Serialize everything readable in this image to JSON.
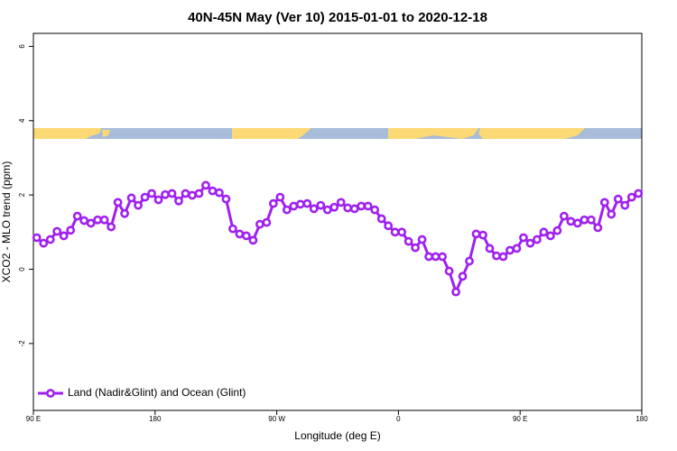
{
  "chart_data": {
    "type": "line",
    "title": "40N-45N May (Ver 10)   2015-01-01 to 2020-12-18",
    "x_label": "Longitude (deg E)",
    "y_label": "XCO2 - MLO trend (ppm)",
    "xlim": [
      90,
      540
    ],
    "xticks": [
      {
        "value": 90,
        "label": "90 E"
      },
      {
        "value": 180,
        "label": "180"
      },
      {
        "value": 270,
        "label": "90 W"
      },
      {
        "value": 360,
        "label": "0"
      },
      {
        "value": 450,
        "label": "90 E"
      },
      {
        "value": 540,
        "label": "180"
      }
    ],
    "ylim": [
      -3.8,
      6.35
    ],
    "yticks": [
      -2,
      0,
      2,
      4,
      6
    ],
    "legend": "bottomleft",
    "x": [
      92.5,
      97.5,
      102.5,
      107.5,
      112.5,
      117.5,
      122.5,
      127.5,
      132.5,
      137.5,
      142.5,
      147.5,
      152.5,
      157.5,
      162.5,
      167.5,
      172.5,
      177.5,
      182.5,
      187.5,
      192.5,
      197.5,
      202.5,
      207.5,
      212.5,
      217.5,
      222.5,
      227.5,
      232.5,
      237.5,
      242.5,
      247.5,
      252.5,
      257.5,
      262.5,
      267.5,
      272.5,
      277.5,
      282.5,
      287.5,
      292.5,
      297.5,
      302.5,
      307.5,
      312.5,
      317.5,
      322.5,
      327.5,
      332.5,
      337.5,
      342.5,
      347.5,
      352.5,
      357.5,
      362.5,
      367.5,
      372.5,
      377.5,
      382.5,
      387.5,
      392.5,
      397.5,
      402.5,
      407.5,
      412.5,
      417.5,
      422.5,
      427.5,
      432.5,
      437.5,
      442.5,
      447.5,
      452.5,
      457.5,
      462.5,
      467.5,
      472.5,
      477.5,
      482.5,
      487.5,
      492.5,
      497.5,
      502.5,
      507.5,
      512.5,
      517.5,
      522.5,
      527.5,
      532.5,
      537.5
    ],
    "series": [
      {
        "name": "Land (Nadir&Glint) and Ocean (Glint)",
        "color": "#a020f0",
        "values": [
          0.85,
          0.7,
          0.8,
          1.02,
          0.9,
          1.05,
          1.43,
          1.31,
          1.24,
          1.33,
          1.33,
          1.14,
          1.8,
          1.5,
          1.92,
          1.72,
          1.94,
          2.04,
          1.87,
          2.01,
          2.04,
          1.84,
          2.04,
          1.99,
          2.04,
          2.26,
          2.11,
          2.06,
          1.89,
          1.09,
          0.95,
          0.9,
          0.78,
          1.21,
          1.26,
          1.77,
          1.94,
          1.6,
          1.7,
          1.75,
          1.77,
          1.63,
          1.72,
          1.6,
          1.67,
          1.8,
          1.65,
          1.63,
          1.7,
          1.7,
          1.6,
          1.36,
          1.17,
          1.0,
          1.0,
          0.75,
          0.58,
          0.8,
          0.34,
          0.34,
          0.34,
          -0.05,
          -0.61,
          -0.19,
          0.22,
          0.95,
          0.92,
          0.56,
          0.36,
          0.34,
          0.51,
          0.56,
          0.85,
          0.7,
          0.8,
          1.0,
          0.9,
          1.04,
          1.43,
          1.29,
          1.24,
          1.33,
          1.33,
          1.12,
          1.8,
          1.48,
          1.89,
          1.72,
          1.94,
          2.04
        ]
      }
    ]
  }
}
